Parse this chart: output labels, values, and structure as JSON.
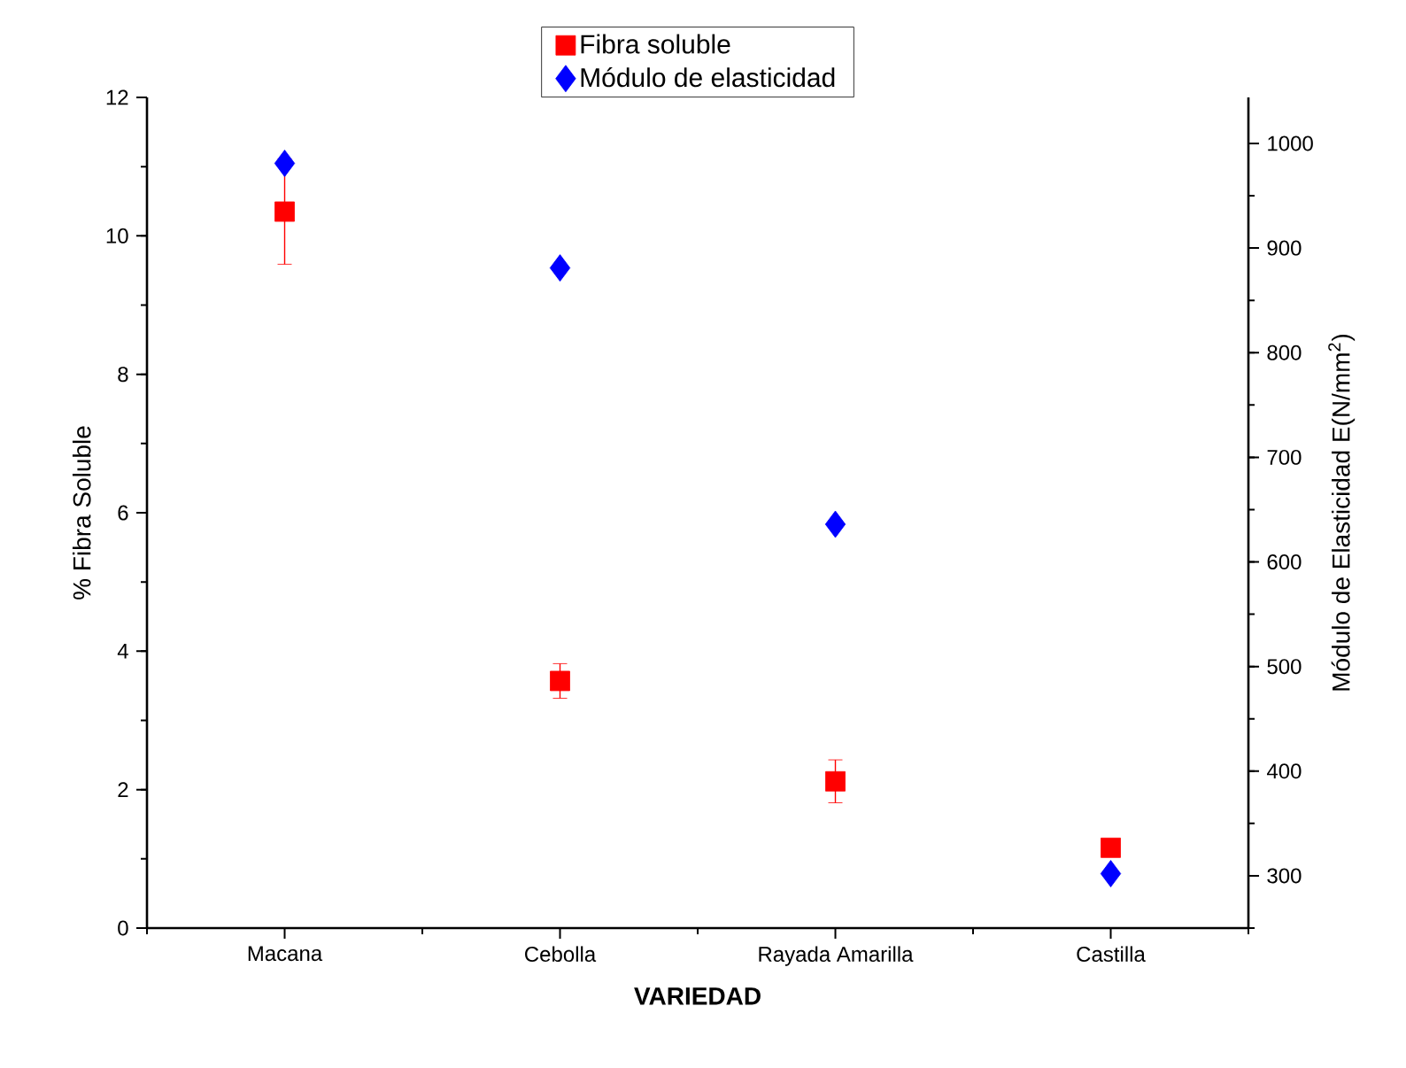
{
  "chart_data": {
    "type": "scatter",
    "categories": [
      "Macana",
      "Cebolla",
      "Rayada Amarilla",
      "Castilla"
    ],
    "xlabel": "VARIEDAD",
    "ylabel": "% Fibra Soluble",
    "y2label": "Módulo de Elasticidad E(N/mm$^{2}$)",
    "ylim": [
      0,
      12
    ],
    "yticks": [
      0,
      2,
      4,
      6,
      8,
      10,
      12
    ],
    "y2lim": [
      250,
      1044
    ],
    "y2ticks": [
      300,
      400,
      500,
      600,
      700,
      800,
      900,
      1000
    ],
    "legend": "top",
    "grid": false,
    "series": [
      {
        "name": "Fibra soluble",
        "color": "#ff0000",
        "marker": "square",
        "values": [
          10.35,
          3.57,
          2.12,
          1.16
        ],
        "errors": [
          0.76,
          0.25,
          0.31,
          null
        ]
      },
      {
        "name": "Módulo de elasticidad",
        "color": "#0000ff",
        "marker": "diamond",
        "axis": "y2",
        "values": [
          981,
          881,
          636,
          302
        ]
      }
    ]
  }
}
